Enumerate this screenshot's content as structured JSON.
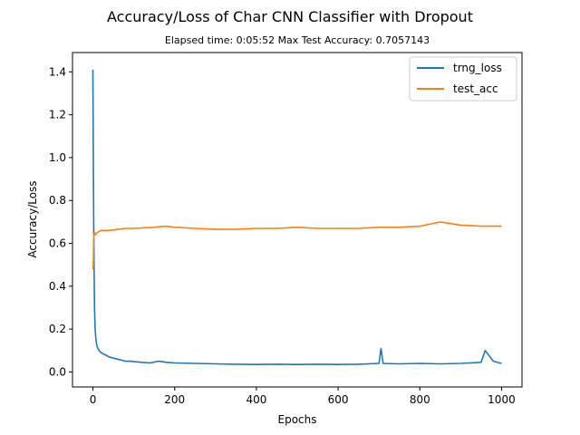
{
  "chart_data": {
    "type": "line",
    "title": "Accuracy/Loss of Char CNN Classifier with Dropout",
    "subtitle": "Elapsed time: 0:05:52   Max Test Accuracy: 0.7057143",
    "xlabel": "Epochs",
    "ylabel": "Accuracy/Loss",
    "xlim": [
      -50,
      1050
    ],
    "ylim": [
      -0.07,
      1.49
    ],
    "xticks": [
      0,
      200,
      400,
      600,
      800,
      1000
    ],
    "yticks": [
      0.0,
      0.2,
      0.4,
      0.6,
      0.8,
      1.0,
      1.2,
      1.4
    ],
    "grid": false,
    "legend_position": "top-right",
    "series": [
      {
        "name": "trng_loss",
        "color": "#1f77b4",
        "x": [
          0,
          1,
          2,
          3,
          4,
          5,
          6,
          7,
          8,
          10,
          12,
          15,
          20,
          25,
          30,
          40,
          50,
          60,
          70,
          80,
          90,
          100,
          120,
          140,
          160,
          180,
          200,
          250,
          300,
          350,
          400,
          450,
          500,
          550,
          600,
          650,
          700,
          705,
          710,
          750,
          800,
          850,
          900,
          950,
          960,
          980,
          1000
        ],
        "y": [
          1.41,
          1.0,
          0.7,
          0.45,
          0.3,
          0.22,
          0.18,
          0.16,
          0.14,
          0.12,
          0.11,
          0.1,
          0.09,
          0.085,
          0.08,
          0.07,
          0.065,
          0.06,
          0.055,
          0.05,
          0.05,
          0.048,
          0.045,
          0.042,
          0.05,
          0.045,
          0.042,
          0.04,
          0.038,
          0.036,
          0.035,
          0.036,
          0.035,
          0.036,
          0.035,
          0.036,
          0.04,
          0.11,
          0.04,
          0.038,
          0.04,
          0.038,
          0.04,
          0.045,
          0.1,
          0.05,
          0.04
        ]
      },
      {
        "name": "test_acc",
        "color": "#ff7f0e",
        "x": [
          0,
          1,
          2,
          4,
          6,
          10,
          20,
          40,
          60,
          80,
          100,
          150,
          180,
          200,
          250,
          300,
          350,
          400,
          450,
          500,
          550,
          600,
          650,
          700,
          750,
          800,
          850,
          900,
          950,
          1000
        ],
        "y": [
          0.48,
          0.5,
          0.64,
          0.65,
          0.64,
          0.65,
          0.66,
          0.66,
          0.665,
          0.67,
          0.67,
          0.675,
          0.68,
          0.675,
          0.67,
          0.665,
          0.665,
          0.67,
          0.67,
          0.675,
          0.67,
          0.67,
          0.67,
          0.675,
          0.675,
          0.68,
          0.7,
          0.685,
          0.68,
          0.68
        ]
      }
    ]
  }
}
